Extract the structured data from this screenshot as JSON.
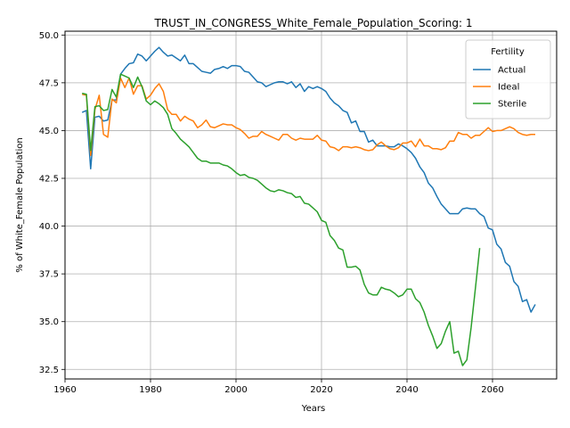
{
  "chart_data": {
    "type": "line",
    "title": "TRUST_IN_CONGRESS_White_Female_Population_Scoring: 1",
    "xlabel": "Years",
    "ylabel": "% of White_Female Population",
    "xlim": [
      1960,
      2075
    ],
    "ylim": [
      32,
      50.2
    ],
    "xticks": [
      1960,
      1980,
      2000,
      2020,
      2040,
      2060
    ],
    "yticks": [
      32.5,
      35.0,
      37.5,
      40.0,
      42.5,
      45.0,
      47.5,
      50.0
    ],
    "ytick_labels": [
      "32.5",
      "35.0",
      "37.5",
      "40.0",
      "42.5",
      "45.0",
      "47.5",
      "50.0"
    ],
    "grid": true,
    "legend": {
      "title": "Fertility",
      "placement": "top-right"
    },
    "series": [
      {
        "name": "Actual",
        "color": "#1f77b4",
        "points": [
          [
            1964,
            45.95
          ],
          [
            1965,
            46.05
          ],
          [
            1966,
            43.0
          ],
          [
            1967,
            45.7
          ],
          [
            1968,
            45.75
          ],
          [
            1969,
            45.5
          ],
          [
            1970,
            45.55
          ],
          [
            1971,
            46.6
          ],
          [
            1972,
            46.6
          ],
          [
            1973,
            47.95
          ],
          [
            1974,
            48.25
          ],
          [
            1975,
            48.5
          ],
          [
            1976,
            48.55
          ],
          [
            1977,
            49.0
          ],
          [
            1978,
            48.9
          ],
          [
            1979,
            48.65
          ],
          [
            1980,
            48.9
          ],
          [
            1981,
            49.15
          ],
          [
            1982,
            49.35
          ],
          [
            1983,
            49.1
          ],
          [
            1984,
            48.9
          ],
          [
            1985,
            48.95
          ],
          [
            1986,
            48.8
          ],
          [
            1987,
            48.65
          ],
          [
            1988,
            48.95
          ],
          [
            1989,
            48.5
          ],
          [
            1990,
            48.5
          ],
          [
            1991,
            48.3
          ],
          [
            1992,
            48.1
          ],
          [
            1993,
            48.05
          ],
          [
            1994,
            48.0
          ],
          [
            1995,
            48.2
          ],
          [
            1996,
            48.25
          ],
          [
            1997,
            48.35
          ],
          [
            1998,
            48.25
          ],
          [
            1999,
            48.4
          ],
          [
            2000,
            48.4
          ],
          [
            2001,
            48.35
          ],
          [
            2002,
            48.1
          ],
          [
            2003,
            48.05
          ],
          [
            2004,
            47.8
          ],
          [
            2005,
            47.55
          ],
          [
            2006,
            47.5
          ],
          [
            2007,
            47.3
          ],
          [
            2008,
            47.4
          ],
          [
            2009,
            47.5
          ],
          [
            2010,
            47.55
          ],
          [
            2011,
            47.55
          ],
          [
            2012,
            47.45
          ],
          [
            2013,
            47.55
          ],
          [
            2014,
            47.25
          ],
          [
            2015,
            47.45
          ],
          [
            2016,
            47.05
          ],
          [
            2017,
            47.3
          ],
          [
            2018,
            47.2
          ],
          [
            2019,
            47.3
          ],
          [
            2020,
            47.2
          ],
          [
            2021,
            47.05
          ],
          [
            2022,
            46.7
          ],
          [
            2023,
            46.45
          ],
          [
            2024,
            46.3
          ],
          [
            2025,
            46.05
          ],
          [
            2026,
            45.95
          ],
          [
            2027,
            45.4
          ],
          [
            2028,
            45.5
          ],
          [
            2029,
            44.95
          ],
          [
            2030,
            44.95
          ],
          [
            2031,
            44.4
          ],
          [
            2032,
            44.5
          ],
          [
            2033,
            44.2
          ],
          [
            2034,
            44.2
          ],
          [
            2035,
            44.2
          ],
          [
            2036,
            44.15
          ],
          [
            2037,
            44.15
          ],
          [
            2038,
            44.3
          ],
          [
            2039,
            44.2
          ],
          [
            2040,
            44.05
          ],
          [
            2041,
            43.85
          ],
          [
            2042,
            43.55
          ],
          [
            2043,
            43.1
          ],
          [
            2044,
            42.8
          ],
          [
            2045,
            42.25
          ],
          [
            2046,
            42.0
          ],
          [
            2047,
            41.55
          ],
          [
            2048,
            41.15
          ],
          [
            2049,
            40.9
          ],
          [
            2050,
            40.65
          ],
          [
            2051,
            40.65
          ],
          [
            2052,
            40.65
          ],
          [
            2053,
            40.9
          ],
          [
            2054,
            40.95
          ],
          [
            2055,
            40.9
          ],
          [
            2056,
            40.9
          ],
          [
            2057,
            40.65
          ],
          [
            2058,
            40.5
          ],
          [
            2059,
            39.9
          ],
          [
            2060,
            39.8
          ],
          [
            2061,
            39.05
          ],
          [
            2062,
            38.8
          ],
          [
            2063,
            38.1
          ],
          [
            2064,
            37.9
          ],
          [
            2065,
            37.1
          ],
          [
            2066,
            36.85
          ],
          [
            2067,
            36.05
          ],
          [
            2068,
            36.15
          ],
          [
            2069,
            35.5
          ],
          [
            2070,
            35.9
          ]
        ]
      },
      {
        "name": "Ideal",
        "color": "#ff7f0e",
        "points": [
          [
            1964,
            46.9
          ],
          [
            1965,
            46.85
          ],
          [
            1966,
            43.7
          ],
          [
            1967,
            46.1
          ],
          [
            1968,
            46.85
          ],
          [
            1969,
            44.8
          ],
          [
            1970,
            44.65
          ],
          [
            1971,
            46.65
          ],
          [
            1972,
            46.45
          ],
          [
            1973,
            47.75
          ],
          [
            1974,
            47.25
          ],
          [
            1975,
            47.75
          ],
          [
            1976,
            46.9
          ],
          [
            1977,
            47.35
          ],
          [
            1978,
            47.35
          ],
          [
            1979,
            46.65
          ],
          [
            1980,
            46.85
          ],
          [
            1981,
            47.2
          ],
          [
            1982,
            47.45
          ],
          [
            1983,
            47.05
          ],
          [
            1984,
            46.1
          ],
          [
            1985,
            45.85
          ],
          [
            1986,
            45.85
          ],
          [
            1987,
            45.5
          ],
          [
            1988,
            45.75
          ],
          [
            1989,
            45.6
          ],
          [
            1990,
            45.5
          ],
          [
            1991,
            45.15
          ],
          [
            1992,
            45.3
          ],
          [
            1993,
            45.55
          ],
          [
            1994,
            45.2
          ],
          [
            1995,
            45.15
          ],
          [
            1996,
            45.25
          ],
          [
            1997,
            45.35
          ],
          [
            1998,
            45.3
          ],
          [
            1999,
            45.3
          ],
          [
            2000,
            45.15
          ],
          [
            2001,
            45.05
          ],
          [
            2002,
            44.85
          ],
          [
            2003,
            44.6
          ],
          [
            2004,
            44.7
          ],
          [
            2005,
            44.7
          ],
          [
            2006,
            44.95
          ],
          [
            2007,
            44.8
          ],
          [
            2008,
            44.7
          ],
          [
            2009,
            44.6
          ],
          [
            2010,
            44.5
          ],
          [
            2011,
            44.8
          ],
          [
            2012,
            44.8
          ],
          [
            2013,
            44.6
          ],
          [
            2014,
            44.5
          ],
          [
            2015,
            44.6
          ],
          [
            2016,
            44.55
          ],
          [
            2017,
            44.55
          ],
          [
            2018,
            44.55
          ],
          [
            2019,
            44.75
          ],
          [
            2020,
            44.5
          ],
          [
            2021,
            44.45
          ],
          [
            2022,
            44.15
          ],
          [
            2023,
            44.1
          ],
          [
            2024,
            43.95
          ],
          [
            2025,
            44.15
          ],
          [
            2026,
            44.15
          ],
          [
            2027,
            44.1
          ],
          [
            2028,
            44.15
          ],
          [
            2029,
            44.1
          ],
          [
            2030,
            44.0
          ],
          [
            2031,
            43.95
          ],
          [
            2032,
            44.0
          ],
          [
            2033,
            44.25
          ],
          [
            2034,
            44.4
          ],
          [
            2035,
            44.2
          ],
          [
            2036,
            44.05
          ],
          [
            2037,
            44.0
          ],
          [
            2038,
            44.1
          ],
          [
            2039,
            44.35
          ],
          [
            2040,
            44.35
          ],
          [
            2041,
            44.45
          ],
          [
            2042,
            44.15
          ],
          [
            2043,
            44.55
          ],
          [
            2044,
            44.2
          ],
          [
            2045,
            44.2
          ],
          [
            2046,
            44.05
          ],
          [
            2047,
            44.05
          ],
          [
            2048,
            44.0
          ],
          [
            2049,
            44.1
          ],
          [
            2050,
            44.45
          ],
          [
            2051,
            44.45
          ],
          [
            2052,
            44.9
          ],
          [
            2053,
            44.8
          ],
          [
            2054,
            44.8
          ],
          [
            2055,
            44.6
          ],
          [
            2056,
            44.75
          ],
          [
            2057,
            44.75
          ],
          [
            2058,
            44.95
          ],
          [
            2059,
            45.15
          ],
          [
            2060,
            44.95
          ],
          [
            2061,
            45.0
          ],
          [
            2062,
            45.0
          ],
          [
            2063,
            45.1
          ],
          [
            2064,
            45.2
          ],
          [
            2065,
            45.1
          ],
          [
            2066,
            44.9
          ],
          [
            2067,
            44.8
          ],
          [
            2068,
            44.75
          ],
          [
            2069,
            44.8
          ],
          [
            2070,
            44.8
          ]
        ]
      },
      {
        "name": "Sterile",
        "color": "#2ca02c",
        "points": [
          [
            1964,
            46.95
          ],
          [
            1965,
            46.9
          ],
          [
            1966,
            43.95
          ],
          [
            1967,
            46.25
          ],
          [
            1968,
            46.3
          ],
          [
            1969,
            46.05
          ],
          [
            1970,
            46.1
          ],
          [
            1971,
            47.15
          ],
          [
            1972,
            46.75
          ],
          [
            1973,
            47.95
          ],
          [
            1974,
            47.85
          ],
          [
            1975,
            47.75
          ],
          [
            1976,
            47.25
          ],
          [
            1977,
            47.8
          ],
          [
            1978,
            47.3
          ],
          [
            1979,
            46.55
          ],
          [
            1980,
            46.35
          ],
          [
            1981,
            46.55
          ],
          [
            1982,
            46.4
          ],
          [
            1983,
            46.2
          ],
          [
            1984,
            45.85
          ],
          [
            1985,
            45.1
          ],
          [
            1986,
            44.85
          ],
          [
            1987,
            44.55
          ],
          [
            1988,
            44.35
          ],
          [
            1989,
            44.15
          ],
          [
            1990,
            43.85
          ],
          [
            1991,
            43.55
          ],
          [
            1992,
            43.4
          ],
          [
            1993,
            43.4
          ],
          [
            1994,
            43.3
          ],
          [
            1995,
            43.3
          ],
          [
            1996,
            43.3
          ],
          [
            1997,
            43.2
          ],
          [
            1998,
            43.15
          ],
          [
            1999,
            43.0
          ],
          [
            2000,
            42.8
          ],
          [
            2001,
            42.65
          ],
          [
            2002,
            42.7
          ],
          [
            2003,
            42.55
          ],
          [
            2004,
            42.5
          ],
          [
            2005,
            42.4
          ],
          [
            2006,
            42.2
          ],
          [
            2007,
            42.0
          ],
          [
            2008,
            41.85
          ],
          [
            2009,
            41.8
          ],
          [
            2010,
            41.9
          ],
          [
            2011,
            41.85
          ],
          [
            2012,
            41.75
          ],
          [
            2013,
            41.7
          ],
          [
            2014,
            41.5
          ],
          [
            2015,
            41.55
          ],
          [
            2016,
            41.2
          ],
          [
            2017,
            41.15
          ],
          [
            2018,
            40.95
          ],
          [
            2019,
            40.75
          ],
          [
            2020,
            40.3
          ],
          [
            2021,
            40.2
          ],
          [
            2022,
            39.5
          ],
          [
            2023,
            39.25
          ],
          [
            2024,
            38.85
          ],
          [
            2025,
            38.75
          ],
          [
            2026,
            37.85
          ],
          [
            2027,
            37.85
          ],
          [
            2028,
            37.9
          ],
          [
            2029,
            37.7
          ],
          [
            2030,
            36.95
          ],
          [
            2031,
            36.5
          ],
          [
            2032,
            36.4
          ],
          [
            2033,
            36.4
          ],
          [
            2034,
            36.8
          ],
          [
            2035,
            36.7
          ],
          [
            2036,
            36.65
          ],
          [
            2037,
            36.5
          ],
          [
            2038,
            36.3
          ],
          [
            2039,
            36.4
          ],
          [
            2040,
            36.7
          ],
          [
            2041,
            36.7
          ],
          [
            2042,
            36.2
          ],
          [
            2043,
            36.0
          ],
          [
            2044,
            35.5
          ],
          [
            2045,
            34.8
          ],
          [
            2046,
            34.25
          ],
          [
            2047,
            33.6
          ],
          [
            2048,
            33.85
          ],
          [
            2049,
            34.5
          ],
          [
            2050,
            35.0
          ],
          [
            2051,
            33.35
          ],
          [
            2052,
            33.45
          ],
          [
            2053,
            32.7
          ],
          [
            2054,
            33.0
          ],
          [
            2055,
            34.7
          ],
          [
            2056,
            36.75
          ],
          [
            2057,
            38.85
          ]
        ]
      }
    ]
  }
}
